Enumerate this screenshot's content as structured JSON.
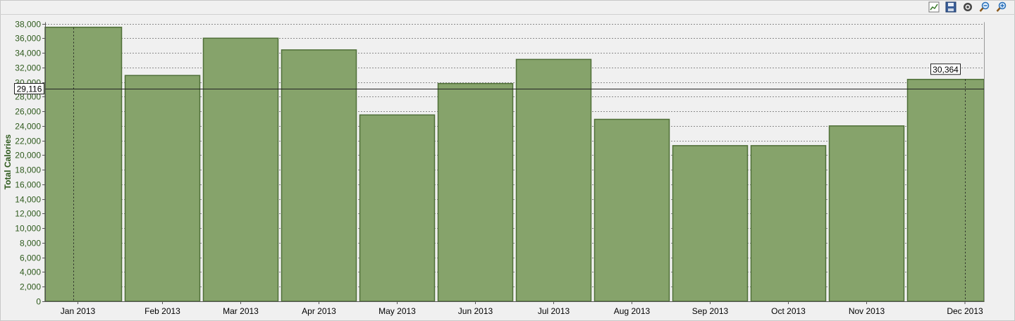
{
  "toolbar": {
    "icons": [
      "chart-icon",
      "save-icon",
      "settings-icon",
      "zoom-out-icon",
      "zoom-in-icon"
    ]
  },
  "colors": {
    "bar_fill": "#86a36b",
    "bar_stroke": "#4f6f38",
    "axis_text": "#2e5a1c",
    "grid": "#8a8a8a"
  },
  "chart_data": {
    "type": "bar",
    "ylabel": "Total Calories",
    "xlabel": "",
    "ylim": [
      0,
      38000
    ],
    "ytick_step": 2000,
    "grid": true,
    "categories": [
      "Jan 2013",
      "Feb 2013",
      "Mar 2013",
      "Apr 2013",
      "May 2013",
      "Jun 2013",
      "Jul 2013",
      "Aug 2013",
      "Sep 2013",
      "Oct 2013",
      "Nov 2013",
      "Dec 2013"
    ],
    "values": [
      37500,
      30900,
      36000,
      34400,
      25500,
      29800,
      33100,
      24900,
      21300,
      21300,
      24000,
      30364
    ],
    "crosshair_y_value": 29116,
    "crosshair_y_label": "29,116",
    "hover_value_label": "30,364"
  }
}
